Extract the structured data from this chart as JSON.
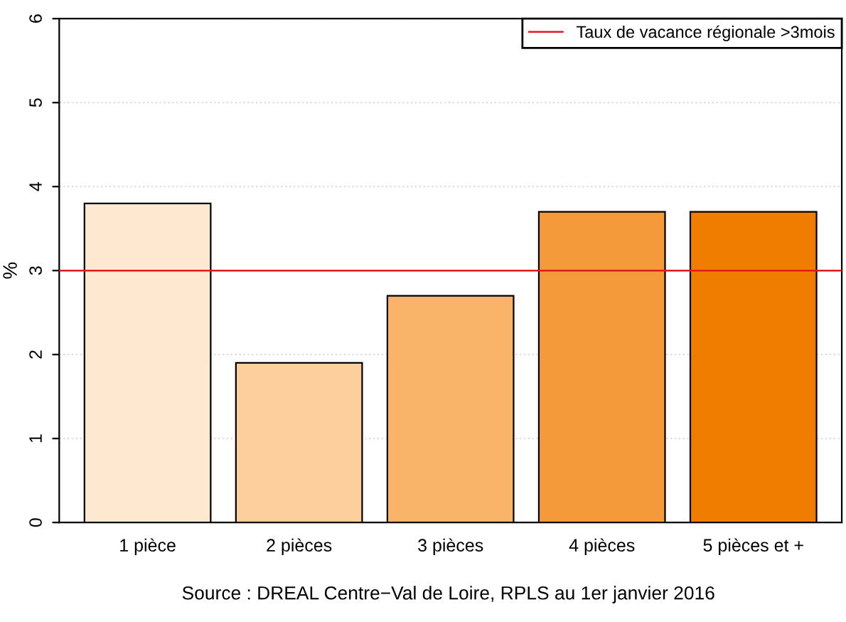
{
  "chart_data": {
    "type": "bar",
    "ylabel": "%",
    "categories": [
      "1 pièce",
      "2 pièces",
      "3 pièces",
      "4 pièces",
      "5 pièces et +"
    ],
    "values": [
      3.8,
      1.9,
      2.7,
      3.7,
      3.7
    ],
    "colors": [
      "#fee8d0",
      "#fccf9c",
      "#f9b46a",
      "#f49a3a",
      "#f07c00"
    ],
    "ylim": [
      0,
      6
    ],
    "yticks": [
      0,
      1,
      2,
      3,
      4,
      5,
      6
    ],
    "grid": "y",
    "legend": "top right",
    "ref_lines": [
      {
        "axis": "y",
        "value": 3,
        "label": "Taux de vacance régionale >3mois",
        "color": "#e31a1c",
        "line_style": "solid"
      }
    ],
    "annotations": [
      "Source : DREAL Centre−Val de Loire, RPLS au 1er janvier 2016"
    ]
  }
}
